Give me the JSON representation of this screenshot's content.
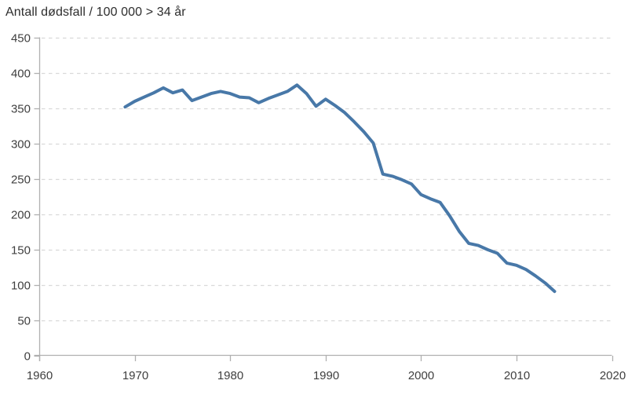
{
  "title": "Antall dødsfall / 100 000 > 34 år",
  "colors": {
    "line": "#4878a8",
    "axis": "#b0b0b0",
    "grid": "#d9d9d9",
    "tick_text": "#3f3f3f",
    "title_text": "#2d2d2d",
    "background": "#ffffff"
  },
  "chart_data": {
    "type": "line",
    "title": "Antall dødsfall / 100 000 > 34 år",
    "xlabel": "",
    "ylabel": "",
    "xlim": [
      1960,
      2020
    ],
    "ylim": [
      0,
      450
    ],
    "x_ticks": [
      1960,
      1970,
      1980,
      1990,
      2000,
      2010,
      2020
    ],
    "y_ticks": [
      0,
      50,
      100,
      150,
      200,
      250,
      300,
      350,
      400,
      450
    ],
    "grid": "dashed-horizontal",
    "legend": "none",
    "x": [
      1969,
      1970,
      1971,
      1972,
      1973,
      1974,
      1975,
      1976,
      1977,
      1978,
      1979,
      1980,
      1981,
      1982,
      1983,
      1984,
      1985,
      1986,
      1987,
      1988,
      1989,
      1990,
      1991,
      1992,
      1993,
      1994,
      1995,
      1996,
      1997,
      1998,
      1999,
      2000,
      2001,
      2002,
      2003,
      2004,
      2005,
      2006,
      2007,
      2008,
      2009,
      2010,
      2011,
      2012,
      2013,
      2014
    ],
    "y": [
      352,
      360,
      366,
      372,
      379,
      372,
      376,
      361,
      366,
      371,
      374,
      371,
      366,
      365,
      358,
      364,
      369,
      374,
      383,
      371,
      353,
      363,
      354,
      344,
      331,
      317,
      301,
      257,
      254,
      249,
      243,
      228,
      222,
      217,
      198,
      176,
      159,
      156,
      150,
      145,
      131,
      128,
      122,
      113,
      103,
      91
    ]
  }
}
